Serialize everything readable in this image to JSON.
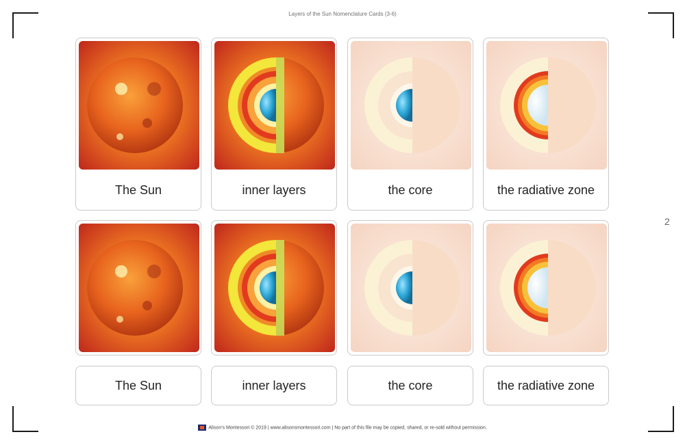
{
  "header": {
    "title": "Layers of the Sun Nomenclature Cards (3-6)"
  },
  "page_number": "2",
  "cards": [
    {
      "label": "The Sun",
      "image": "sun-photo"
    },
    {
      "label": "inner layers",
      "image": "sun-layers-cutaway"
    },
    {
      "label": "the core",
      "image": "sun-core-highlight"
    },
    {
      "label": "the radiative zone",
      "image": "sun-radiative-zone-highlight"
    }
  ],
  "footer": {
    "text": "Alison's Montessori © 2019 | www.alisonsmontessori.com | No part of this file may be copied, shared, or re-sold without permission."
  },
  "colors": {
    "sun_orange": "#e8641e",
    "core_blue": "#2aa6d6",
    "card_border": "#c9c9c9"
  }
}
